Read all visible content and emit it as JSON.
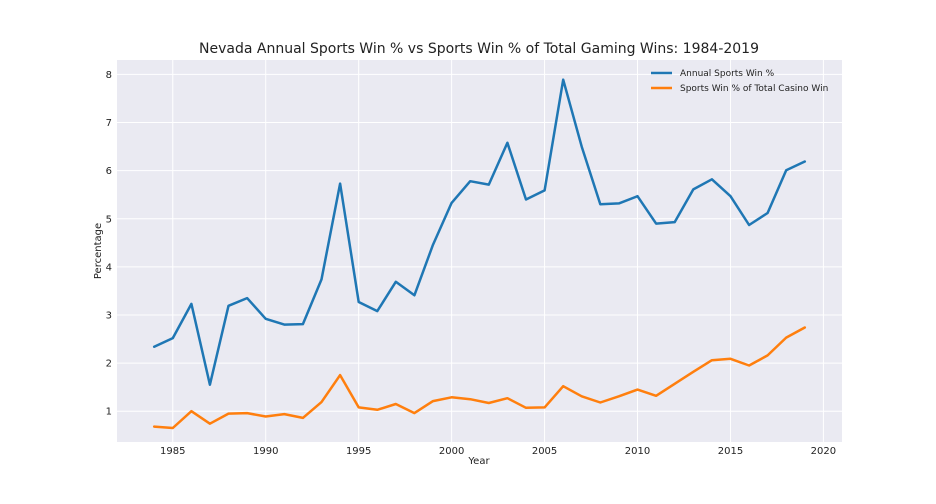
{
  "chart_data": {
    "type": "line",
    "title": "Nevada Annual Sports Win % vs Sports Win % of Total Gaming Wins: 1984-2019",
    "xlabel": "Year",
    "ylabel": "Percentage",
    "xlim": [
      1982,
      2021
    ],
    "ylim": [
      0.36,
      8.3
    ],
    "xticks": [
      1985,
      1990,
      1995,
      2000,
      2005,
      2010,
      2015,
      2020
    ],
    "yticks": [
      1,
      2,
      3,
      4,
      5,
      6,
      7,
      8
    ],
    "grid": true,
    "legend_position": "top-right",
    "x": [
      1984,
      1985,
      1986,
      1987,
      1988,
      1989,
      1990,
      1991,
      1992,
      1993,
      1994,
      1995,
      1996,
      1997,
      1998,
      1999,
      2000,
      2001,
      2002,
      2003,
      2004,
      2005,
      2006,
      2007,
      2008,
      2009,
      2010,
      2011,
      2012,
      2013,
      2014,
      2015,
      2016,
      2017,
      2018,
      2019
    ],
    "series": [
      {
        "name": "Annual Sports Win %",
        "color": "#1f77b4",
        "values": [
          2.34,
          2.52,
          3.23,
          1.55,
          3.19,
          3.35,
          2.92,
          2.8,
          2.81,
          3.74,
          5.73,
          3.27,
          3.08,
          3.69,
          3.41,
          4.46,
          5.33,
          5.78,
          5.71,
          6.58,
          5.4,
          5.59,
          7.89,
          6.5,
          5.3,
          5.32,
          5.47,
          4.9,
          4.93,
          5.61,
          5.82,
          5.47,
          4.87,
          5.12,
          6.01,
          6.19
        ]
      },
      {
        "name": "Sports Win % of Total Casino Win",
        "color": "#ff7f0e",
        "values": [
          0.68,
          0.65,
          1.0,
          0.74,
          0.95,
          0.96,
          0.89,
          0.94,
          0.86,
          1.19,
          1.75,
          1.08,
          1.03,
          1.15,
          0.96,
          1.21,
          1.29,
          1.25,
          1.17,
          1.27,
          1.07,
          1.08,
          1.52,
          1.31,
          1.18,
          1.31,
          1.45,
          1.32,
          1.57,
          1.82,
          2.06,
          2.09,
          1.95,
          2.16,
          2.53,
          2.74
        ]
      }
    ]
  }
}
